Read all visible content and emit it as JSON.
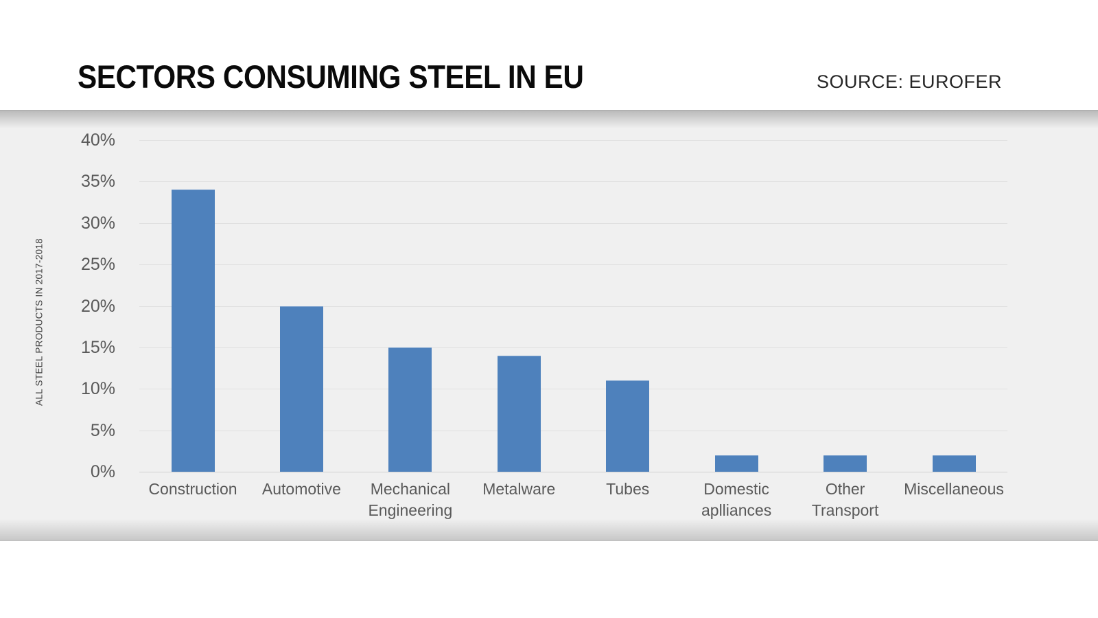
{
  "header": {
    "title": "SECTORS CONSUMING STEEL IN EU",
    "source": "SOURCE: EUROFER"
  },
  "chart_data": {
    "type": "bar",
    "title": "SECTORS CONSUMING STEEL IN EU",
    "source": "SOURCE: EUROFER",
    "categories": [
      "Construction",
      "Automotive",
      "Mechanical Engineering",
      "Metalware",
      "Tubes",
      "Domestic aplliances",
      "Other Transport",
      "Miscellaneous"
    ],
    "values": [
      34,
      20,
      15,
      14,
      11,
      2,
      2,
      2
    ],
    "xlabel": "",
    "ylabel": "ALL STEEL PRODUCTS IN 2017-2018",
    "ylim": [
      0,
      40
    ],
    "ytick_step": 5,
    "yticks": [
      "0%",
      "5%",
      "10%",
      "15%",
      "20%",
      "25%",
      "30%",
      "35%",
      "40%"
    ],
    "grid": true,
    "legend": false,
    "colors": {
      "bar": "#4e81bc",
      "band_background": "#f0f0f0",
      "gridline": "#e0e0e0",
      "tick_text": "#595959",
      "title_text": "#0a0a0a"
    }
  }
}
